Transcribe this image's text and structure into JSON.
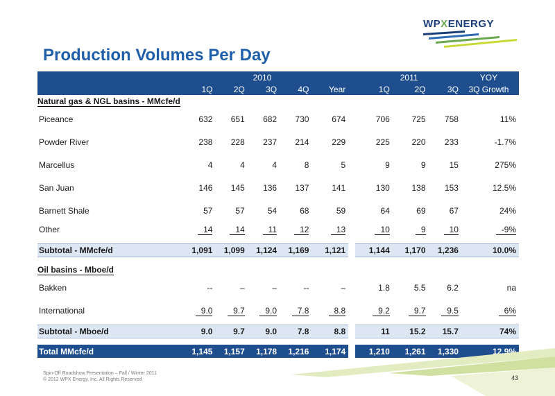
{
  "logo": {
    "text_pre": "WP",
    "text_x": "X",
    "text_post": "ENERGY"
  },
  "title": "Production Volumes Per Day",
  "header": {
    "year_2010": "2010",
    "year_2011": "2011",
    "yoy_top": "YOY",
    "cols": [
      "1Q",
      "2Q",
      "3Q",
      "4Q",
      "Year",
      "1Q",
      "2Q",
      "3Q",
      "3Q Growth"
    ]
  },
  "gas_section": {
    "label": "Natural gas & NGL basins - MMcfe/d",
    "rows": [
      {
        "name": "Piceance",
        "values": [
          "632",
          "651",
          "682",
          "730",
          "674",
          "706",
          "725",
          "758",
          "11%"
        ]
      },
      {
        "name": "Powder River",
        "values": [
          "238",
          "228",
          "237",
          "214",
          "229",
          "225",
          "220",
          "233",
          "-1.7%"
        ]
      },
      {
        "name": "Marcellus",
        "values": [
          "4",
          "4",
          "4",
          "8",
          "5",
          "9",
          "9",
          "15",
          "275%"
        ]
      },
      {
        "name": "San Juan",
        "values": [
          "146",
          "145",
          "136",
          "137",
          "141",
          "130",
          "138",
          "153",
          "12.5%"
        ]
      },
      {
        "name": "Barnett Shale",
        "values": [
          "57",
          "57",
          "54",
          "68",
          "59",
          "64",
          "69",
          "67",
          "24%"
        ]
      },
      {
        "name": "Other",
        "values": [
          "14",
          "14",
          "11",
          "12",
          "13",
          "10",
          "9",
          "10",
          "-9%"
        ]
      }
    ],
    "subtotal": {
      "name": "Subtotal - MMcfe/d",
      "values": [
        "1,091",
        "1,099",
        "1,124",
        "1,169",
        "1,121",
        "1,144",
        "1,170",
        "1,236",
        "10.0%"
      ]
    }
  },
  "oil_section": {
    "label": "Oil basins - Mboe/d",
    "rows": [
      {
        "name": "Bakken",
        "values": [
          "--",
          "–",
          "–",
          "--",
          "–",
          "1.8",
          "5.5",
          "6.2",
          "na"
        ]
      },
      {
        "name": "International",
        "values": [
          "9.0",
          "9.7",
          "9.0",
          "7.8",
          "8.8",
          "9.2",
          "9.7",
          "9.5",
          "6%"
        ]
      }
    ],
    "subtotal": {
      "name": "Subtotal - Mboe/d",
      "values": [
        "9.0",
        "9.7",
        "9.0",
        "7.8",
        "8.8",
        "11",
        "15.2",
        "15.7",
        "74%"
      ]
    }
  },
  "total": {
    "name": "Total MMcfe/d",
    "values": [
      "1,145",
      "1,157",
      "1,178",
      "1,216",
      "1,174",
      "1,210",
      "1,261",
      "1,330",
      "12.9%"
    ]
  },
  "footer": {
    "line1": "Spin-Off Roadshow Presentation – Fall / Winter 2011",
    "line2": "© 2012 WPX Energy, Inc. All Rights Reserved",
    "page_number": "43"
  },
  "colors": {
    "header_blue": "#1f4e8f",
    "title_blue": "#1f5ea8",
    "subtotal_fill": "#dde7f4",
    "logo_green": "#6aa84f"
  }
}
